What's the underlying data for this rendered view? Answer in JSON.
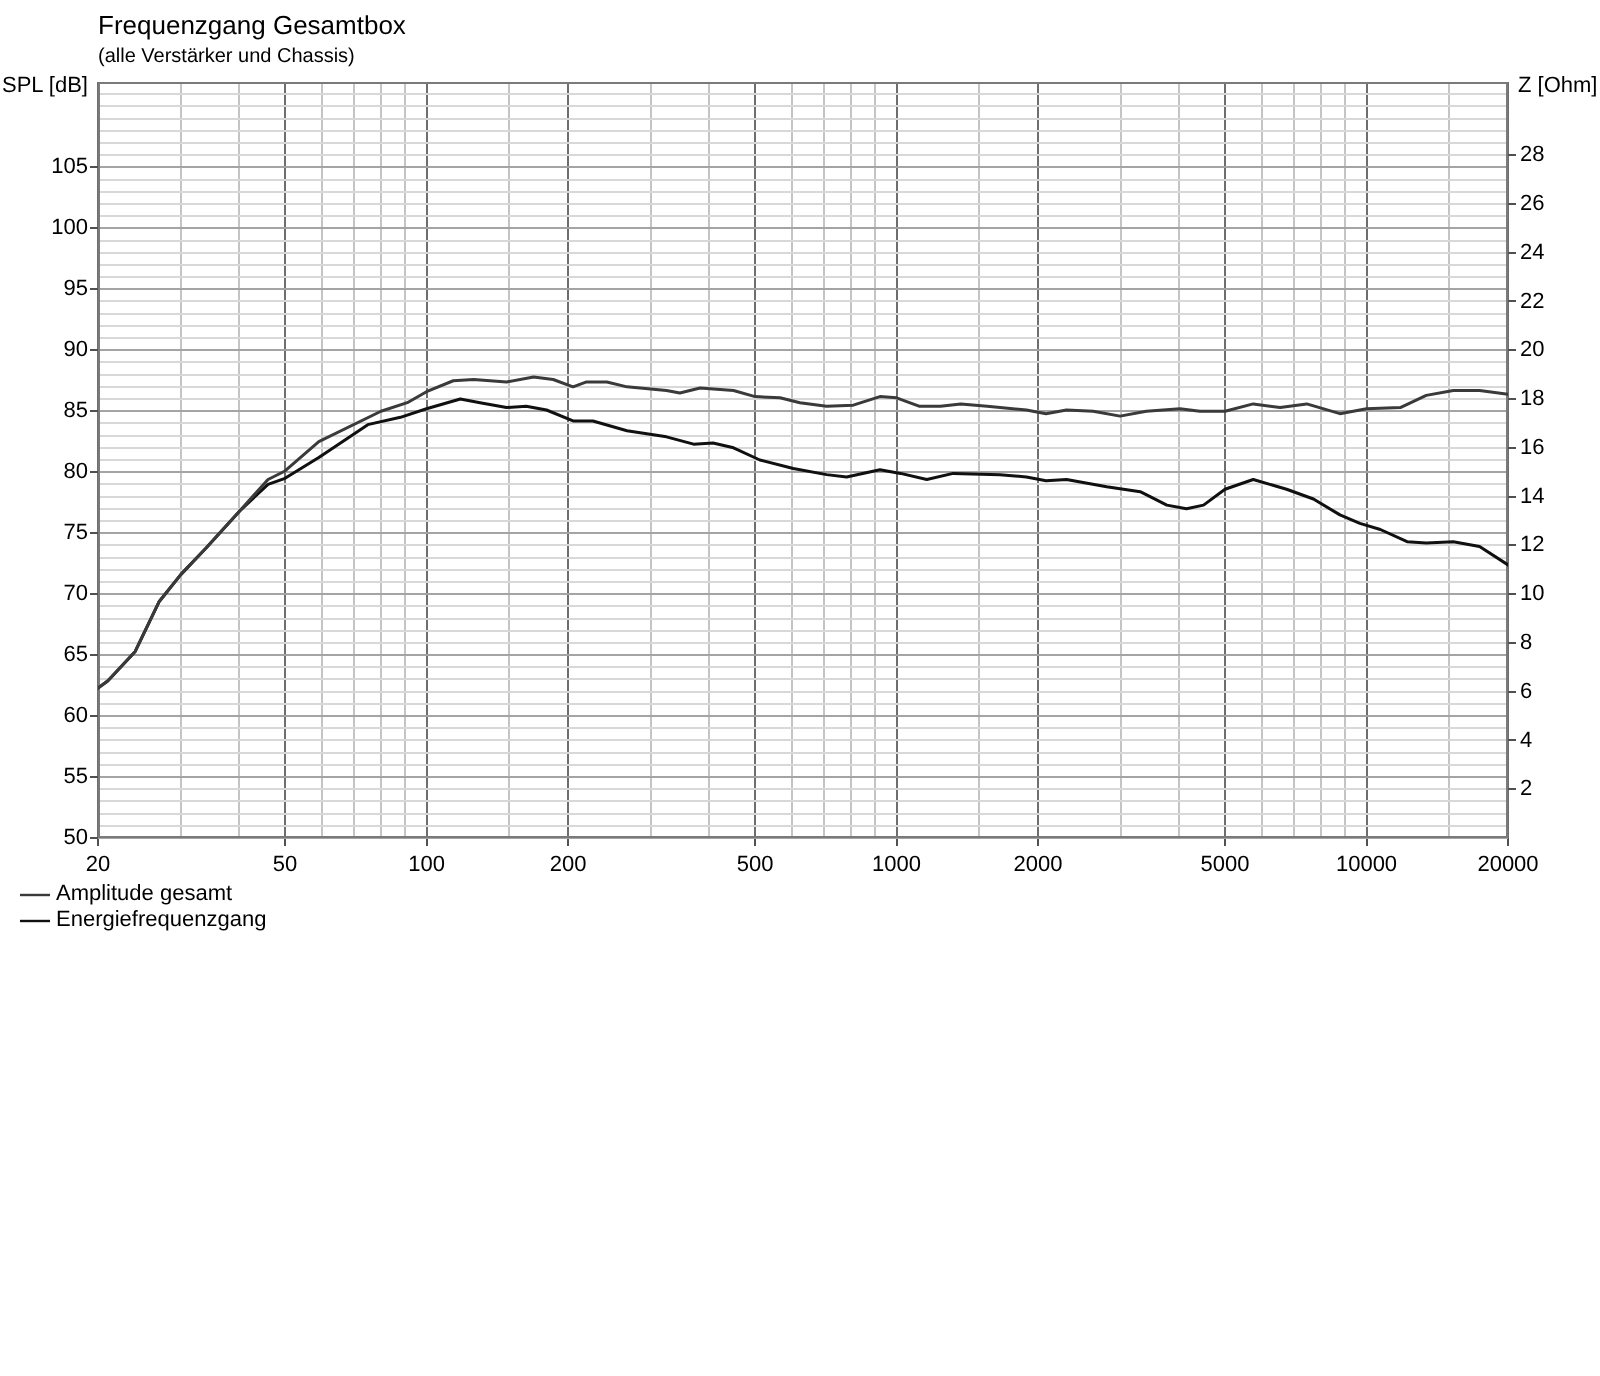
{
  "chart_data": {
    "type": "line",
    "title": "Frequenzgang Gesamtbox",
    "subtitle": "(alle Verstärker und Chassis)",
    "ylabel": "SPL [dB]",
    "y2label": "Z [Ohm]",
    "log": "x",
    "grid": true,
    "legend": "bottom left",
    "marker": "none",
    "xlim": [
      20,
      20000
    ],
    "xticks": [
      20,
      {
        "value": 30,
        "label": null
      },
      {
        "value": 40,
        "label": null
      },
      50,
      {
        "value": 60,
        "label": null
      },
      {
        "value": 70,
        "label": null
      },
      {
        "value": 80,
        "label": null
      },
      {
        "value": 90,
        "label": null
      },
      100,
      {
        "value": 150,
        "label": null
      },
      200,
      {
        "value": 300,
        "label": null
      },
      {
        "value": 400,
        "label": null
      },
      500,
      {
        "value": 600,
        "label": null
      },
      {
        "value": 700,
        "label": null
      },
      {
        "value": 800,
        "label": null
      },
      {
        "value": 900,
        "label": null
      },
      1000,
      {
        "value": 1500,
        "label": null
      },
      2000,
      {
        "value": 3000,
        "label": null
      },
      {
        "value": 4000,
        "label": null
      },
      5000,
      {
        "value": 6000,
        "label": null
      },
      {
        "value": 7000,
        "label": null
      },
      {
        "value": 8000,
        "label": null
      },
      {
        "value": 9000,
        "label": null
      },
      10000,
      {
        "value": 15000,
        "label": null
      },
      20000
    ],
    "ylim": [
      50,
      112
    ],
    "yticks": [
      50,
      {
        "value": 51,
        "label": null
      },
      {
        "value": 52,
        "label": null
      },
      {
        "value": 53,
        "label": null
      },
      {
        "value": 54,
        "label": null
      },
      55,
      {
        "value": 56,
        "label": null
      },
      {
        "value": 57,
        "label": null
      },
      {
        "value": 58,
        "label": null
      },
      {
        "value": 59,
        "label": null
      },
      60,
      {
        "value": 61,
        "label": null
      },
      {
        "value": 62,
        "label": null
      },
      {
        "value": 63,
        "label": null
      },
      {
        "value": 64,
        "label": null
      },
      65,
      {
        "value": 66,
        "label": null
      },
      {
        "value": 67,
        "label": null
      },
      {
        "value": 68,
        "label": null
      },
      {
        "value": 69,
        "label": null
      },
      70,
      {
        "value": 71,
        "label": null
      },
      {
        "value": 72,
        "label": null
      },
      {
        "value": 73,
        "label": null
      },
      {
        "value": 74,
        "label": null
      },
      75,
      {
        "value": 76,
        "label": null
      },
      {
        "value": 77,
        "label": null
      },
      {
        "value": 78,
        "label": null
      },
      {
        "value": 79,
        "label": null
      },
      80,
      {
        "value": 81,
        "label": null
      },
      {
        "value": 82,
        "label": null
      },
      {
        "value": 83,
        "label": null
      },
      {
        "value": 84,
        "label": null
      },
      85,
      {
        "value": 86,
        "label": null
      },
      {
        "value": 87,
        "label": null
      },
      {
        "value": 88,
        "label": null
      },
      {
        "value": 89,
        "label": null
      },
      90,
      {
        "value": 91,
        "label": null
      },
      {
        "value": 92,
        "label": null
      },
      {
        "value": 93,
        "label": null
      },
      {
        "value": 94,
        "label": null
      },
      95,
      {
        "value": 96,
        "label": null
      },
      {
        "value": 97,
        "label": null
      },
      {
        "value": 98,
        "label": null
      },
      {
        "value": 99,
        "label": null
      },
      100,
      {
        "value": 101,
        "label": null
      },
      {
        "value": 102,
        "label": null
      },
      {
        "value": 103,
        "label": null
      },
      {
        "value": 104,
        "label": null
      },
      105,
      {
        "value": 106,
        "label": null
      },
      {
        "value": 107,
        "label": null
      },
      {
        "value": 108,
        "label": null
      },
      {
        "value": 109,
        "label": null
      },
      {
        "value": 110,
        "label": null
      },
      {
        "value": 111,
        "label": null
      }
    ],
    "y2lim": [
      0,
      31
    ],
    "y2ticks": [
      2,
      4,
      6,
      8,
      10,
      12,
      14,
      16,
      18,
      20,
      22,
      24,
      26,
      28
    ],
    "series": [
      {
        "name": "Amplitude gesamt",
        "color": "#3a3a3a",
        "x": [
          20,
          21,
          24,
          27,
          30,
          34,
          40,
          46,
          50,
          59,
          80,
          91,
          100,
          114,
          126,
          148,
          169,
          186,
          205,
          219,
          242,
          267,
          324,
          346,
          382,
          450,
          500,
          565,
          623,
          710,
          809,
          922,
          1000,
          1120,
          1240,
          1370,
          1560,
          1890,
          2080,
          2300,
          2620,
          2990,
          3400,
          4010,
          4420,
          5000,
          5740,
          6550,
          7460,
          8780,
          10000,
          11800,
          13400,
          15300,
          17400,
          20000
        ],
        "values": [
          62.3,
          62.9,
          65.3,
          69.4,
          71.6,
          73.8,
          76.8,
          79.4,
          80.1,
          82.5,
          85.0,
          85.7,
          86.6,
          87.5,
          87.6,
          87.4,
          87.8,
          87.6,
          87.0,
          87.4,
          87.4,
          87.0,
          86.7,
          86.5,
          86.9,
          86.7,
          86.2,
          86.1,
          85.7,
          85.4,
          85.5,
          86.2,
          86.1,
          85.4,
          85.4,
          85.6,
          85.4,
          85.1,
          84.8,
          85.1,
          85.0,
          84.6,
          85.0,
          85.2,
          85.0,
          85.0,
          85.6,
          85.3,
          85.6,
          84.8,
          85.2,
          85.3,
          86.3,
          86.7,
          86.7,
          86.4
        ]
      },
      {
        "name": "Energiefrequenzgang",
        "color": "#101010",
        "x": [
          20,
          21,
          24,
          27,
          30,
          34,
          40,
          46,
          50,
          59,
          75,
          88,
          100,
          118,
          130,
          148,
          163,
          180,
          205,
          226,
          267,
          324,
          370,
          407,
          450,
          512,
          603,
          710,
          783,
          922,
          1020,
          1160,
          1320,
          1660,
          1890,
          2080,
          2300,
          2800,
          3300,
          3760,
          4140,
          4500,
          5000,
          5740,
          6760,
          7710,
          8780,
          9680,
          10700,
          12200,
          13400,
          15300,
          17400,
          20000
        ],
        "values": [
          62.3,
          62.9,
          65.3,
          69.4,
          71.6,
          73.8,
          76.8,
          79.0,
          79.5,
          81.2,
          83.9,
          84.5,
          85.2,
          86.0,
          85.7,
          85.3,
          85.4,
          85.1,
          84.2,
          84.2,
          83.4,
          82.9,
          82.3,
          82.4,
          82.0,
          81.0,
          80.3,
          79.8,
          79.6,
          80.2,
          79.9,
          79.4,
          79.9,
          79.8,
          79.6,
          79.3,
          79.4,
          78.8,
          78.4,
          77.3,
          77.0,
          77.3,
          78.6,
          79.4,
          78.6,
          77.8,
          76.5,
          75.8,
          75.3,
          74.3,
          74.2,
          74.3,
          73.9,
          72.4
        ]
      }
    ]
  }
}
